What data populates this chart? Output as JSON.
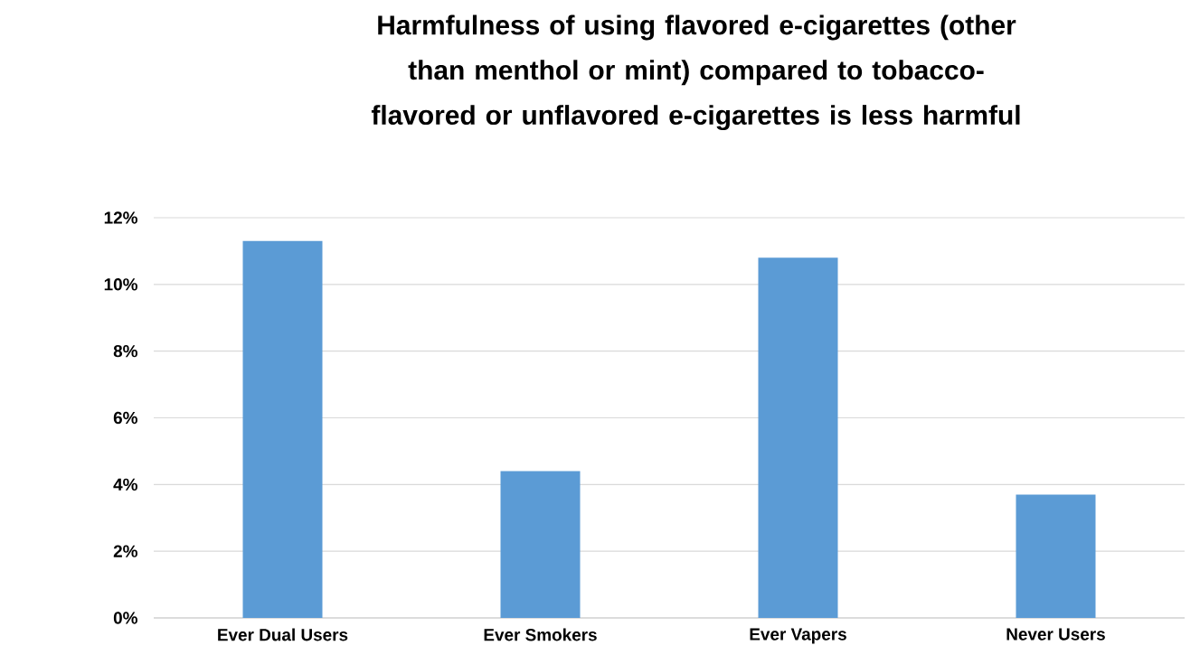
{
  "chart_data": {
    "type": "bar",
    "title": "Harmfulness of using flavored e-cigarettes (other than menthol or mint) compared to tobacco-flavored or unflavored e-cigarettes is less harmful",
    "categories": [
      "Ever Dual Users",
      "Ever Smokers",
      "Ever Vapers",
      "Never Users"
    ],
    "values": [
      11.3,
      4.4,
      10.8,
      3.7
    ],
    "color": "#5b9bd5",
    "ylim": [
      0,
      12
    ],
    "yticks": [
      {
        "value": 0,
        "label": "0%"
      },
      {
        "value": 2,
        "label": "2%"
      },
      {
        "value": 4,
        "label": "4%"
      },
      {
        "value": 6,
        "label": "6%"
      },
      {
        "value": 8,
        "label": "8%"
      },
      {
        "value": 10,
        "label": "10%"
      },
      {
        "value": 12,
        "label": "12%"
      }
    ],
    "grid": "y"
  }
}
